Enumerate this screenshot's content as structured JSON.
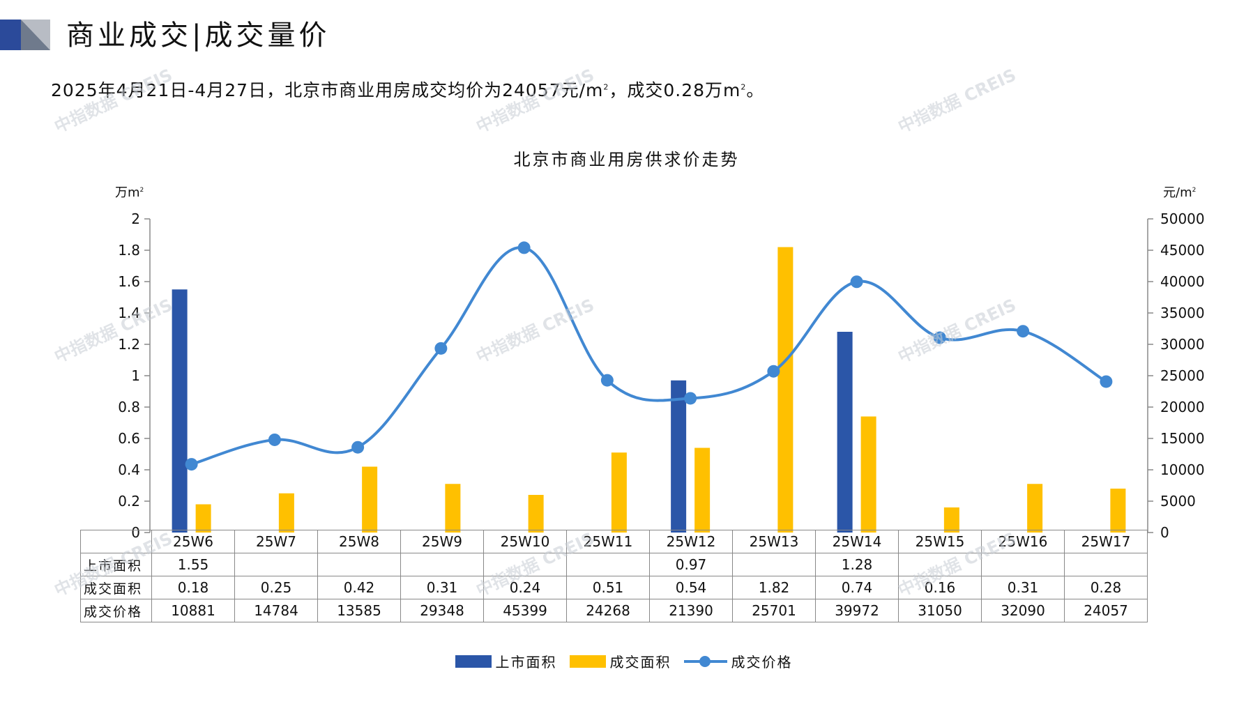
{
  "header": {
    "title": "商业成交|成交量价",
    "summary_prefix": "2025年4月21日-4月27日，北京市商业用房成交均价为24057元/m",
    "summary_sup1": "2",
    "summary_mid": "，成交0.28万m",
    "summary_sup2": "2",
    "summary_suffix": "。"
  },
  "watermark": "中指数据 CREIS",
  "colors": {
    "supply": "#2b56a8",
    "deal_area": "#ffc000",
    "price": "#4188d2",
    "logo_dark": "#2b4a9a",
    "logo_gray": "#b8bcc4"
  },
  "chart_data": {
    "type": "bar+line",
    "title": "北京市商业用房供求价走势",
    "y_left_unit": "万m",
    "y_left_unit_sup": "2",
    "y_right_unit": "元/m",
    "y_right_unit_sup": "2",
    "ylim_left": [
      0,
      2
    ],
    "ylim_right": [
      0,
      50000
    ],
    "y_left_ticks": [
      "0",
      "0.2",
      "0.4",
      "0.6",
      "0.8",
      "1",
      "1.2",
      "1.4",
      "1.6",
      "1.8",
      "2"
    ],
    "y_right_ticks": [
      "0",
      "5000",
      "10000",
      "15000",
      "20000",
      "25000",
      "30000",
      "35000",
      "40000",
      "45000",
      "50000"
    ],
    "categories": [
      "25W6",
      "25W7",
      "25W8",
      "25W9",
      "25W10",
      "25W11",
      "25W12",
      "25W13",
      "25W14",
      "25W15",
      "25W16",
      "25W17"
    ],
    "series": [
      {
        "name": "上市面积",
        "kind": "bar",
        "axis": "left",
        "values": [
          1.55,
          null,
          null,
          null,
          null,
          null,
          0.97,
          null,
          1.28,
          null,
          null,
          null
        ]
      },
      {
        "name": "成交面积",
        "kind": "bar",
        "axis": "left",
        "values": [
          0.18,
          0.25,
          0.42,
          0.31,
          0.24,
          0.51,
          0.54,
          1.82,
          0.74,
          0.16,
          0.31,
          0.28
        ]
      },
      {
        "name": "成交价格",
        "kind": "line",
        "axis": "right",
        "values": [
          10881,
          14784,
          13585,
          29348,
          45399,
          24268,
          21390,
          25701,
          39972,
          31050,
          32090,
          24057
        ]
      }
    ],
    "table_rows": [
      {
        "label": "上市面积",
        "cells": [
          "1.55",
          "",
          "",
          "",
          "",
          "",
          "0.97",
          "",
          "1.28",
          "",
          "",
          ""
        ]
      },
      {
        "label": "成交面积",
        "cells": [
          "0.18",
          "0.25",
          "0.42",
          "0.31",
          "0.24",
          "0.51",
          "0.54",
          "1.82",
          "0.74",
          "0.16",
          "0.31",
          "0.28"
        ]
      },
      {
        "label": "成交价格",
        "cells": [
          "10881",
          "14784",
          "13585",
          "29348",
          "45399",
          "24268",
          "21390",
          "25701",
          "39972",
          "31050",
          "32090",
          "24057"
        ]
      }
    ],
    "legend_position": "bottom-center"
  }
}
